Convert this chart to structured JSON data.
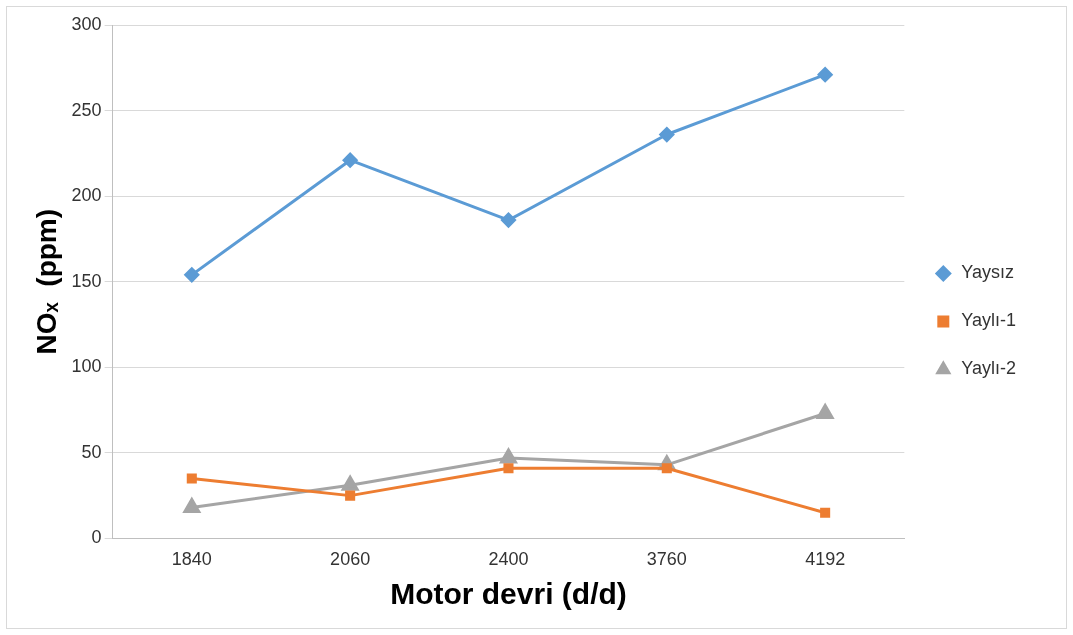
{
  "chart_data": {
    "type": "line",
    "xlabel": "Motor devri (d/d)",
    "ylabel": "NOₓ  (ppm)",
    "categories": [
      "1840",
      "2060",
      "2400",
      "3760",
      "4192"
    ],
    "series": [
      {
        "name": "Yaysız",
        "color": "#5b9bd5",
        "marker": "diamond",
        "values": [
          154,
          221,
          186,
          236,
          271
        ]
      },
      {
        "name": "Yaylı-1",
        "color": "#ed7d31",
        "marker": "square",
        "values": [
          35,
          25,
          41,
          41,
          15
        ]
      },
      {
        "name": "Yaylı-2",
        "color": "#a5a5a5",
        "marker": "triangle",
        "values": [
          18,
          31,
          47,
          43,
          73
        ]
      }
    ],
    "ylim": [
      0,
      300
    ],
    "yticks": [
      0,
      50,
      100,
      150,
      200,
      250,
      300
    ],
    "grid": "y",
    "legend": "right",
    "line_style": "solid"
  }
}
